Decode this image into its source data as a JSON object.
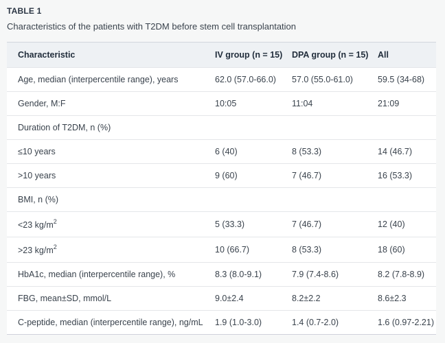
{
  "page": {
    "title": "TABLE 1",
    "caption": "Characteristics of the patients with T2DM before stem cell transplantation"
  },
  "colors": {
    "page_background": "#f6f7f7",
    "table_background": "#ffffff",
    "header_background": "#eef1f4",
    "row_divider": "#e4e6e9",
    "table_border": "#d2d6dd",
    "text": "#39424c",
    "header_text": "#222e3c"
  },
  "table": {
    "columns": [
      "Characteristic",
      "IV group (n = 15)",
      "DPA group (n = 15)",
      "All"
    ],
    "rows": [
      {
        "label": "Age, median (interpercentile range), years",
        "iv": "62.0 (57.0-66.0)",
        "dpa": "57.0 (55.0-61.0)",
        "all": "59.5 (34-68)"
      },
      {
        "label": "Gender, M:F",
        "iv": "10:05",
        "dpa": "11:04",
        "all": "21:09"
      },
      {
        "label": "Duration of T2DM, n (%)",
        "iv": "",
        "dpa": "",
        "all": ""
      },
      {
        "label": "≤10 years",
        "iv": "6 (40)",
        "dpa": "8 (53.3)",
        "all": "14 (46.7)"
      },
      {
        "label": ">10 years",
        "iv": "9 (60)",
        "dpa": "7 (46.7)",
        "all": "16 (53.3)"
      },
      {
        "label": "BMI, n (%)",
        "iv": "",
        "dpa": "",
        "all": ""
      },
      {
        "label": "<23 kg/m",
        "sup": "2",
        "iv": "5 (33.3)",
        "dpa": "7 (46.7)",
        "all": "12 (40)"
      },
      {
        "label": ">23 kg/m",
        "sup": "2",
        "iv": "10 (66.7)",
        "dpa": "8 (53.3)",
        "all": "18 (60)"
      },
      {
        "label": "HbA1c, median (interpercentile range), %",
        "iv": "8.3 (8.0-9.1)",
        "dpa": "7.9 (7.4-8.6)",
        "all": "8.2 (7.8-8.9)"
      },
      {
        "label": "FBG, mean±SD, mmol/L",
        "iv": "9.0±2.4",
        "dpa": "8.2±2.2",
        "all": "8.6±2.3"
      },
      {
        "label": "C-peptide, median (interpercentile range), ng/mL",
        "iv": "1.9 (1.0-3.0)",
        "dpa": "1.4 (0.7-2.0)",
        "all": "1.6 (0.97-2.21)"
      }
    ]
  }
}
